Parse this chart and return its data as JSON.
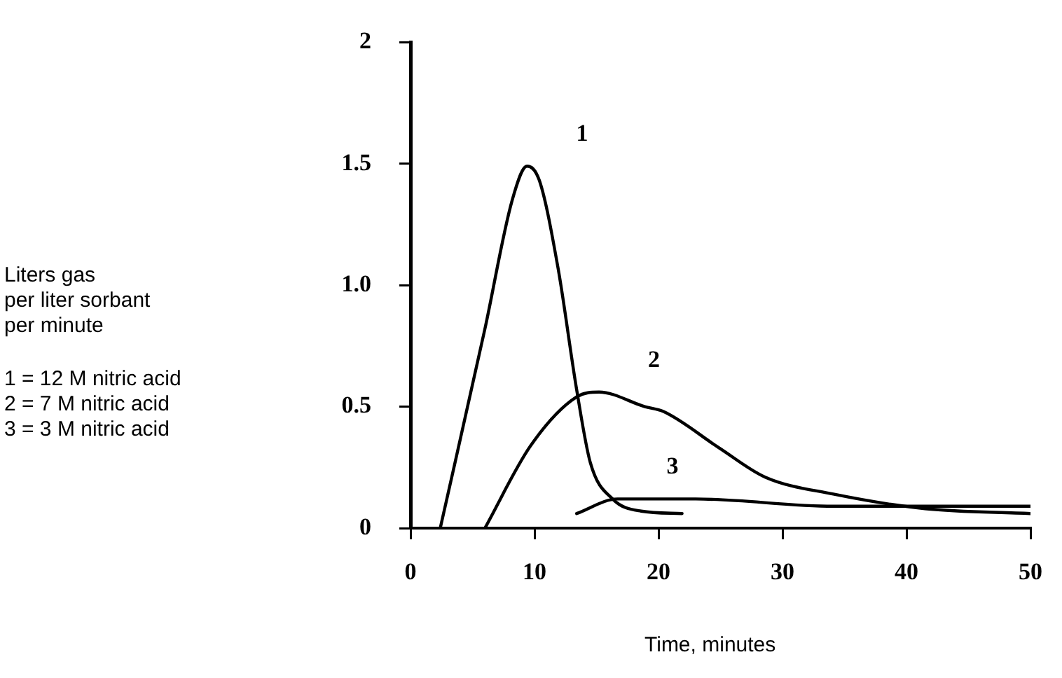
{
  "chart_data": {
    "type": "line",
    "xlabel": "Time, minutes",
    "annotations": [
      "Liters gas\nper liter sorbant\nper minute",
      "1 = 12 M nitric acid\n2 = 7 M nitric acid\n3 = 3 M nitric acid"
    ],
    "xlim": [
      0,
      50
    ],
    "xticks": [
      0,
      10,
      20,
      30,
      40,
      50
    ],
    "ylim": [
      0,
      2
    ],
    "yticks": [
      0,
      {
        "value": 0.5,
        "label": "0.5"
      },
      {
        "value": 1,
        "label": "1.0"
      },
      1.5,
      2
    ],
    "grid": false,
    "legend": false,
    "marker": "none",
    "line_style": "solid",
    "series": [
      {
        "name": "1",
        "color": "#000000",
        "x": [
          2.4,
          6,
          8.2,
          9.4,
          10.4,
          11.9,
          13.4,
          14.5,
          16.3,
          18.6,
          21.9
        ],
        "values": [
          0,
          0.82,
          1.35,
          1.49,
          1.43,
          1.07,
          0.57,
          0.27,
          0.12,
          0.07,
          0.06
        ]
      },
      {
        "name": "2",
        "color": "#000000",
        "x": [
          6,
          9.7,
          13.4,
          15.2,
          18.9,
          20.4,
          24.9,
          28.6,
          34.1,
          41.5,
          50
        ],
        "values": [
          0,
          0.34,
          0.54,
          0.56,
          0.5,
          0.48,
          0.33,
          0.21,
          0.14,
          0.08,
          0.06
        ]
      },
      {
        "name": "3",
        "color": "#000000",
        "x": [
          13.4,
          16.7,
          23,
          34.1,
          50
        ],
        "values": [
          0.06,
          0.12,
          0.12,
          0.09,
          0.09
        ]
      }
    ]
  }
}
